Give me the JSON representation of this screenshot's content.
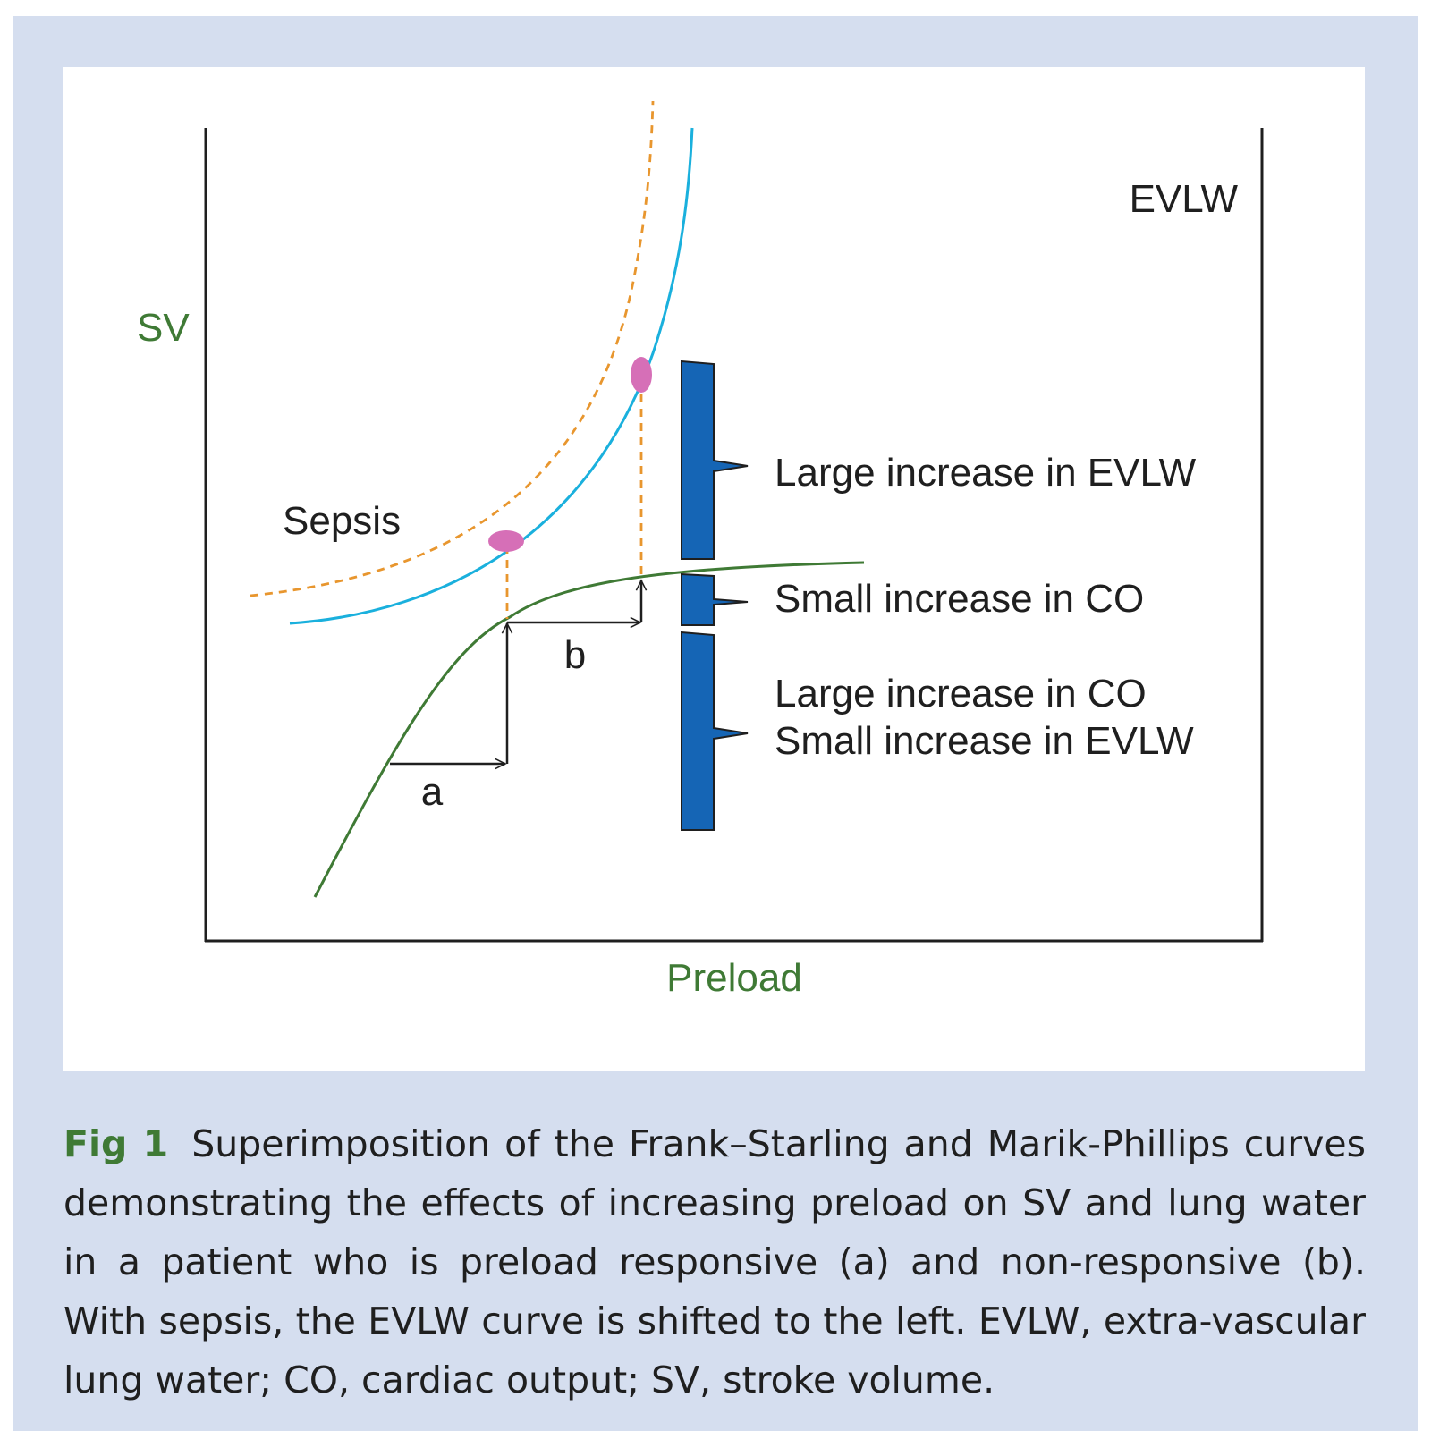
{
  "colors": {
    "background_panel": "#d5deef",
    "green": "#3f7a35",
    "cyan_curve": "#1ab0dd",
    "orange_dashed": "#e8962e",
    "magenta_points": "#d66fb7",
    "bracket_blue": "#1565b5",
    "text": "#1f1f1f"
  },
  "diagram": {
    "y_axis_label": "SV",
    "x_axis_label": "Preload",
    "curve_label_evlw": "EVLW",
    "curve_label_sepsis": "Sepsis",
    "arrow_label_a": "a",
    "arrow_label_b": "b",
    "brackets": [
      {
        "lines": [
          "Large increase in EVLW"
        ]
      },
      {
        "lines": [
          "Small increase in CO"
        ]
      },
      {
        "lines": [
          "Large increase in CO",
          "Small increase in EVLW"
        ]
      }
    ]
  },
  "caption": {
    "label": "Fig 1",
    "text": "Superimposition of the Frank–Starling and Marik-Phillips curves demonstrating the effects of increasing preload on SV and lung water in a patient who is preload responsive (a) and non-responsive (b). With sepsis, the EVLW curve is shifted to the left. EVLW, extra-vascular lung water; CO, cardiac output; SV, stroke volume."
  }
}
